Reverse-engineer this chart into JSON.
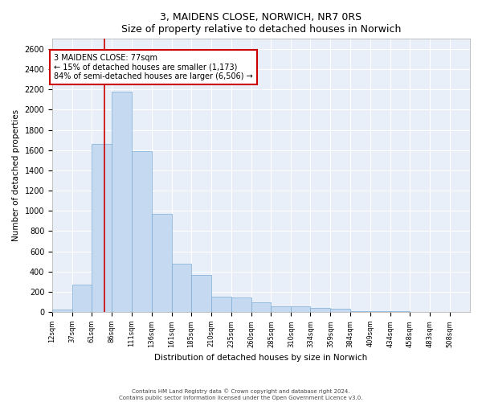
{
  "title": "3, MAIDENS CLOSE, NORWICH, NR7 0RS",
  "subtitle": "Size of property relative to detached houses in Norwich",
  "xlabel": "Distribution of detached houses by size in Norwich",
  "ylabel": "Number of detached properties",
  "property_size": 77,
  "property_label": "3 MAIDENS CLOSE: 77sqm",
  "annotation_line1": "← 15% of detached houses are smaller (1,173)",
  "annotation_line2": "84% of semi-detached houses are larger (6,506) →",
  "footer1": "Contains HM Land Registry data © Crown copyright and database right 2024.",
  "footer2": "Contains public sector information licensed under the Open Government Licence v3.0.",
  "bar_color": "#c5d9f0",
  "bar_edge_color": "#7dadd4",
  "vline_color": "#cc0000",
  "annotation_box_color": "#cc0000",
  "background_color": "#e8eff8",
  "grid_color": "#ffffff",
  "bins": [
    "12sqm",
    "37sqm",
    "61sqm",
    "86sqm",
    "111sqm",
    "136sqm",
    "161sqm",
    "185sqm",
    "210sqm",
    "235sqm",
    "260sqm",
    "285sqm",
    "310sqm",
    "334sqm",
    "359sqm",
    "384sqm",
    "409sqm",
    "434sqm",
    "458sqm",
    "483sqm",
    "508sqm"
  ],
  "bin_edges": [
    12,
    37,
    61,
    86,
    111,
    136,
    161,
    185,
    210,
    235,
    260,
    285,
    310,
    334,
    359,
    384,
    409,
    434,
    458,
    483,
    508
  ],
  "bar_heights": [
    25,
    270,
    1660,
    2180,
    1590,
    970,
    480,
    370,
    155,
    145,
    95,
    55,
    55,
    38,
    35,
    10,
    8,
    8,
    4,
    4,
    3
  ],
  "ylim": [
    0,
    2700
  ],
  "yticks": [
    0,
    200,
    400,
    600,
    800,
    1000,
    1200,
    1400,
    1600,
    1800,
    2000,
    2200,
    2400,
    2600
  ]
}
